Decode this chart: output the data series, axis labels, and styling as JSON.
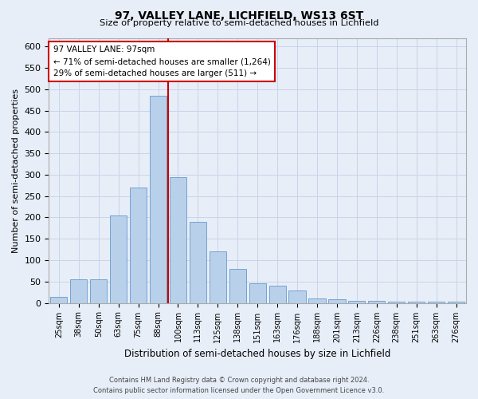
{
  "title": "97, VALLEY LANE, LICHFIELD, WS13 6ST",
  "subtitle": "Size of property relative to semi-detached houses in Lichfield",
  "xlabel": "Distribution of semi-detached houses by size in Lichfield",
  "ylabel": "Number of semi-detached properties",
  "footer_line1": "Contains HM Land Registry data © Crown copyright and database right 2024.",
  "footer_line2": "Contains public sector information licensed under the Open Government Licence v3.0.",
  "annotation_line1": "97 VALLEY LANE: 97sqm",
  "annotation_line2": "← 71% of semi-detached houses are smaller (1,264)",
  "annotation_line3": "29% of semi-detached houses are larger (511) →",
  "property_size": 97,
  "categories": [
    "25sqm",
    "38sqm",
    "50sqm",
    "63sqm",
    "75sqm",
    "88sqm",
    "100sqm",
    "113sqm",
    "125sqm",
    "138sqm",
    "151sqm",
    "163sqm",
    "176sqm",
    "188sqm",
    "201sqm",
    "213sqm",
    "226sqm",
    "238sqm",
    "251sqm",
    "263sqm",
    "276sqm"
  ],
  "bar_heights": [
    15,
    55,
    55,
    205,
    270,
    485,
    295,
    190,
    120,
    80,
    45,
    40,
    30,
    10,
    8,
    5,
    5,
    3,
    2,
    2,
    2
  ],
  "bar_color": "#b8d0ea",
  "bar_edge_color": "#6699cc",
  "vline_color": "#cc0000",
  "grid_color": "#c8d4e8",
  "bg_color": "#e8eef8",
  "ylim": [
    0,
    620
  ],
  "yticks": [
    0,
    50,
    100,
    150,
    200,
    250,
    300,
    350,
    400,
    450,
    500,
    550,
    600
  ],
  "annotation_box_facecolor": "white",
  "annotation_box_edgecolor": "#cc0000",
  "vline_bar_index": 6,
  "n_bars": 21
}
